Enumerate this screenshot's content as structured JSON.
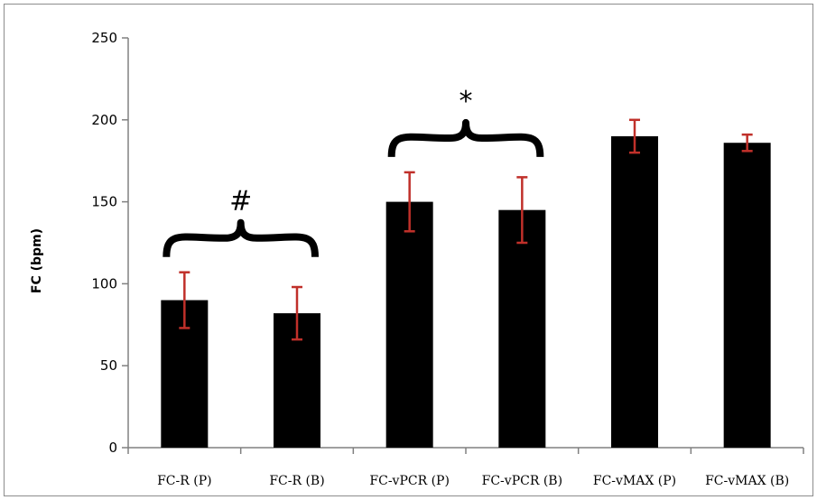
{
  "chart_data": {
    "type": "bar",
    "title": "",
    "xlabel": "",
    "ylabel": "FC (bpm)",
    "ylim": [
      0,
      250
    ],
    "yticks": [
      0,
      50,
      100,
      150,
      200,
      250
    ],
    "grid": false,
    "legend": "none",
    "categories": [
      "FC-R (P)",
      "FC-R (B)",
      "FC-vPCR (P)",
      "FC-vPCR (B)",
      "FC-vMAX (P)",
      "FC-vMAX (B)"
    ],
    "values": [
      90,
      82,
      150,
      145,
      190,
      186
    ],
    "error_bars": [
      17,
      16,
      18,
      20,
      10,
      5
    ],
    "bar_color": "#000000",
    "error_color": "#c0302a",
    "annotations": [
      {
        "text": "#",
        "spans": [
          0,
          1
        ]
      },
      {
        "text": "*",
        "spans": [
          2,
          3
        ]
      }
    ]
  }
}
